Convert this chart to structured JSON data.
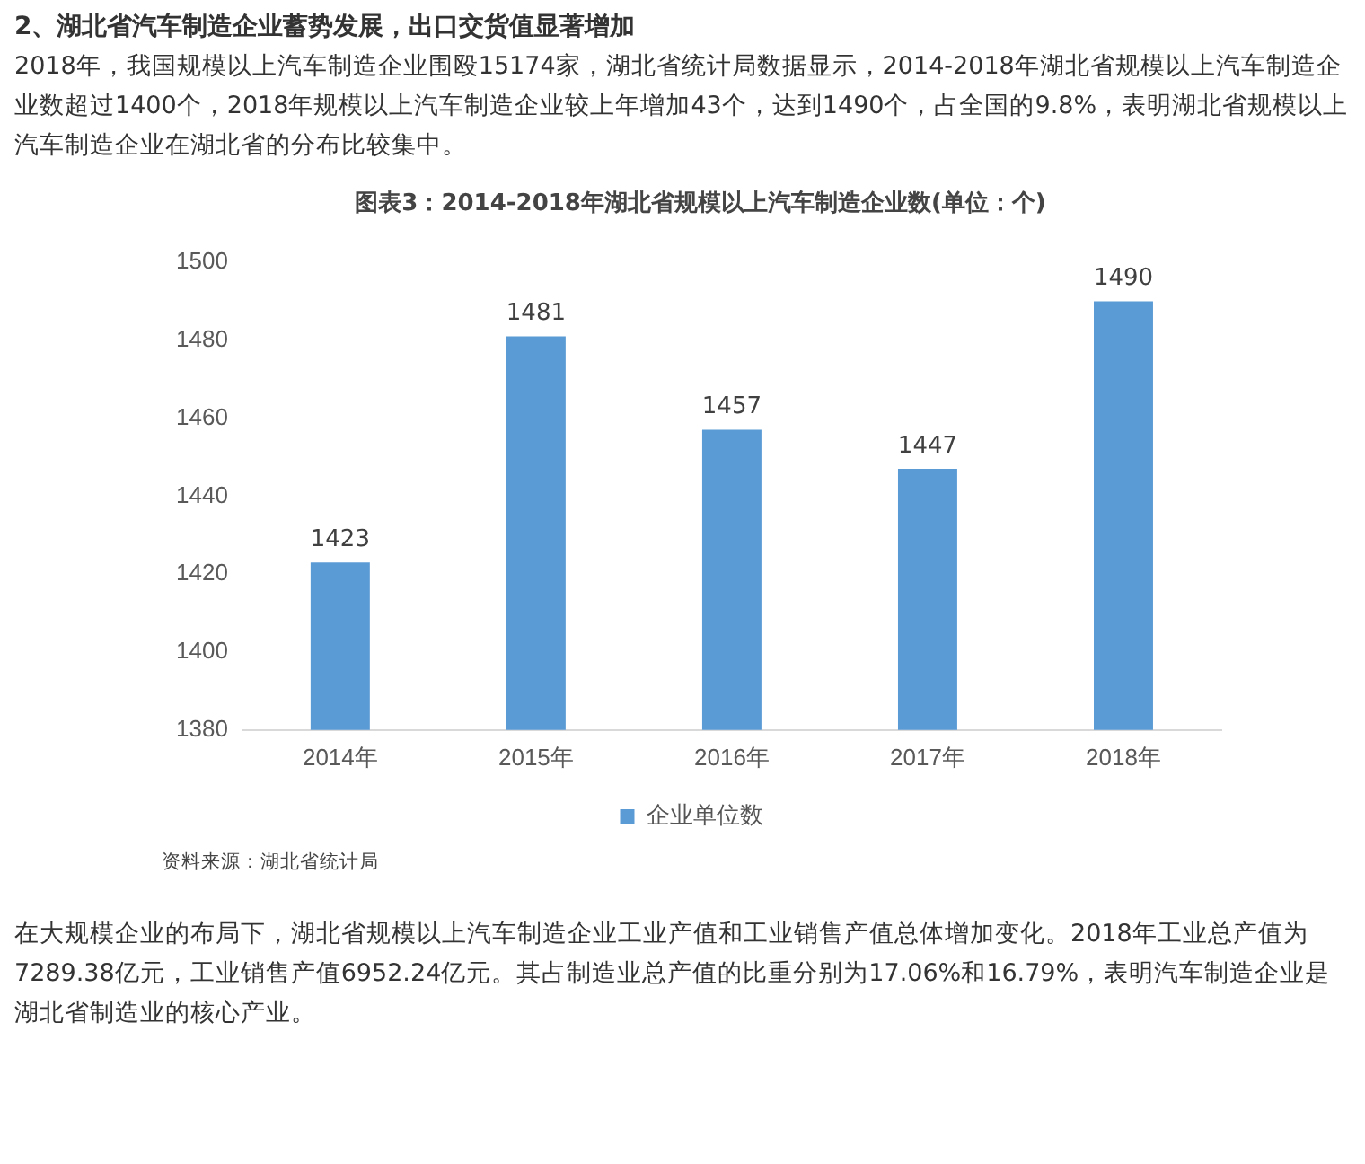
{
  "chart_data": {
    "type": "bar",
    "title": "图表3：2014-2018年湖北省规模以上汽车制造企业数(单位：个)",
    "categories": [
      "2014年",
      "2015年",
      "2016年",
      "2017年",
      "2018年"
    ],
    "series": [
      {
        "name": "企业单位数",
        "color": "#5b9bd5",
        "values": [
          1423,
          1481,
          1457,
          1447,
          1490
        ]
      }
    ],
    "ylim": [
      1380,
      1500
    ],
    "yticks": [
      1380,
      1400,
      1420,
      1440,
      1460,
      1480,
      1500
    ],
    "grid": false,
    "legend": "bottom",
    "data_labels": true,
    "annotations": [
      "2、湖北省汽车制造企业蓄势发展，出口交货值显著增加",
      "2018年，我国规模以上汽车制造企业围殴15174家，湖北省统计局数据显示，2014-2018年湖北省规模以上汽车制造企业数超过1400个，2018年规模以上汽车制造企业较上年增加43个，达到1490个，占全国的9.8%，表明湖北省规模以上汽车制造企业在湖北省的分布比较集中。",
      "资料来源：湖北省统计局",
      "在大规模企业的布局下，湖北省规模以上汽车制造企业工业产值和工业销售产值总体增加变化。2018年工业总产值为7289.38亿元，工业销售产值6952.24亿元。其占制造业总产值的比重分别为17.06%和16.79%，表明汽车制造企业是湖北省制造业的核心产业。"
    ]
  }
}
